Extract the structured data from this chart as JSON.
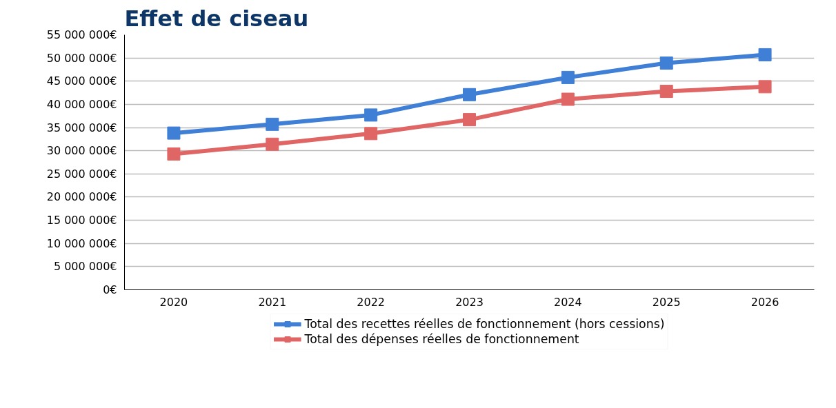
{
  "chart_data": {
    "type": "line",
    "title": "Effet de ciseau",
    "categories": [
      "2020",
      "2021",
      "2022",
      "2023",
      "2024",
      "2025",
      "2026"
    ],
    "series": [
      {
        "name": "Total des recettes réelles de fonctionnement (hors cessions)",
        "color": "#3f7fd6",
        "values": [
          33800000,
          35700000,
          37700000,
          42100000,
          45800000,
          48900000,
          50700000
        ]
      },
      {
        "name": "Total des dépenses réelles de fonctionnement",
        "color": "#e06666",
        "values": [
          29300000,
          31400000,
          33700000,
          36700000,
          41100000,
          42800000,
          43800000
        ]
      }
    ],
    "ylim": [
      0,
      55000000
    ],
    "yticks": [
      {
        "value": 0,
        "label": "0€"
      },
      {
        "value": 5000000,
        "label": "5 000 000€"
      },
      {
        "value": 10000000,
        "label": "10 000 000€"
      },
      {
        "value": 15000000,
        "label": "15 000 000€"
      },
      {
        "value": 20000000,
        "label": "20 000 000€"
      },
      {
        "value": 25000000,
        "label": "25 000 000€"
      },
      {
        "value": 30000000,
        "label": "30 000 000€"
      },
      {
        "value": 35000000,
        "label": "35 000 000€"
      },
      {
        "value": 40000000,
        "label": "40 000 000€"
      },
      {
        "value": 45000000,
        "label": "45 000 000€"
      },
      {
        "value": 50000000,
        "label": "50 000 000€"
      },
      {
        "value": 55000000,
        "label": "55 000 000€"
      }
    ],
    "grid": "y",
    "legend": "bottom",
    "marker": "square",
    "line_style": "solid"
  }
}
